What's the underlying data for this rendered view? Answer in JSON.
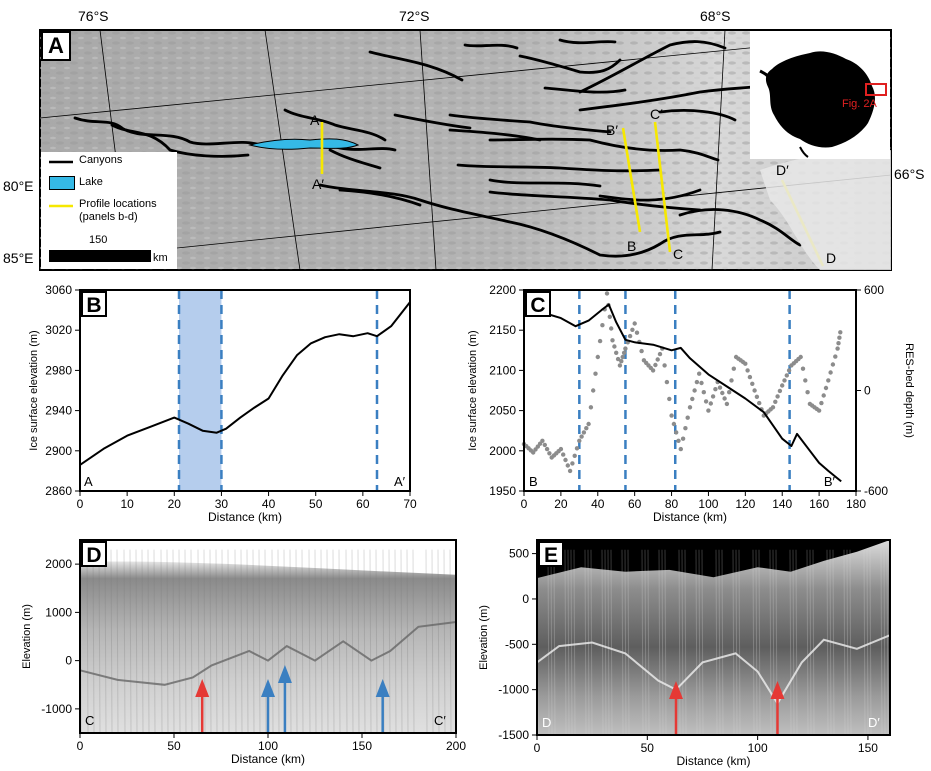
{
  "panel_a": {
    "letter": "A",
    "lat_labels": [
      "76°S",
      "72°S",
      "68°S",
      "66°S"
    ],
    "lon_labels": [
      "80°E",
      "85°E"
    ],
    "legend": {
      "canyons": "Canyons",
      "lake": "Lake",
      "profile": "Profile locations",
      "profile_sub": "(panels b-d)"
    },
    "scale_value": "150",
    "scale_unit": "km",
    "inset_label": "Fig. 2A",
    "profile_labels": [
      "A",
      "A′",
      "B′",
      "B",
      "C′",
      "C",
      "D′",
      "D"
    ]
  },
  "chart_data": [
    {
      "type": "line",
      "panel": "B",
      "xlabel": "Distance (km)",
      "ylabel": "Ice surface elevation (m)",
      "xlim": [
        0,
        70
      ],
      "ylim": [
        2860,
        3060
      ],
      "xticks": [
        0,
        10,
        20,
        30,
        40,
        50,
        60,
        70
      ],
      "yticks": [
        2860,
        2900,
        2940,
        2980,
        3020,
        3060
      ],
      "x": [
        0,
        5,
        10,
        15,
        20,
        23,
        26,
        29,
        31,
        34,
        37,
        40,
        43,
        46,
        49,
        52,
        55,
        58,
        61,
        63,
        66,
        70
      ],
      "y": [
        2886,
        2902,
        2915,
        2924,
        2933,
        2927,
        2920,
        2918,
        2922,
        2933,
        2943,
        2952,
        2975,
        2995,
        3007,
        3013,
        3016,
        3014,
        3017,
        3014,
        3024,
        3048
      ],
      "vlines": [
        21,
        30,
        63
      ],
      "shaded_range": [
        21,
        30
      ],
      "start_label": "A",
      "end_label": "A′"
    },
    {
      "type": "line",
      "panel": "C",
      "xlabel": "Distance (km)",
      "ylabel": "Ice surface elevation (m)",
      "y2label": "RES-bed depth (m)",
      "xlim": [
        0,
        180
      ],
      "ylim": [
        1950,
        2200
      ],
      "y2lim": [
        -600,
        600
      ],
      "xticks": [
        0,
        20,
        40,
        60,
        80,
        100,
        120,
        140,
        160,
        180
      ],
      "yticks": [
        1950,
        2000,
        2050,
        2100,
        2150,
        2200
      ],
      "y2ticks": [
        -600,
        0,
        600
      ],
      "series": [
        {
          "x": [
            0,
            10,
            20,
            28,
            35,
            42,
            46,
            50,
            55,
            60,
            70,
            80,
            85,
            90,
            100,
            110,
            120,
            130,
            140,
            145,
            148,
            155,
            160,
            165,
            172
          ],
          "y": [
            2180,
            2172,
            2165,
            2155,
            2162,
            2175,
            2182,
            2160,
            2138,
            2135,
            2132,
            2125,
            2128,
            2115,
            2095,
            2080,
            2065,
            2048,
            2015,
            2006,
            2021,
            2000,
            1985,
            1975,
            1962
          ]
        },
        {
          "x": [
            0,
            5,
            10,
            15,
            20,
            25,
            30,
            35,
            40,
            45,
            48,
            52,
            55,
            60,
            65,
            70,
            75,
            80,
            85,
            90,
            95,
            100,
            105,
            110,
            115,
            120,
            125,
            130,
            135,
            140,
            145,
            150,
            155,
            160,
            165,
            170,
            172
          ],
          "y": [
            -320,
            -370,
            -300,
            -400,
            -350,
            -480,
            -300,
            -200,
            200,
            580,
            300,
            150,
            250,
            400,
            180,
            120,
            250,
            -150,
            -350,
            -100,
            100,
            -120,
            50,
            -80,
            200,
            160,
            0,
            -150,
            -100,
            30,
            150,
            200,
            -80,
            -120,
            60,
            250,
            380
          ]
        }
      ],
      "vlines": [
        30,
        55,
        82,
        144
      ],
      "start_label": "B",
      "end_label": "B′"
    },
    {
      "type": "heatmap",
      "panel": "D",
      "xlabel": "Distance (km)",
      "ylabel": "Elevation (m)",
      "xlim": [
        0,
        200
      ],
      "ylim": [
        -1500,
        2500
      ],
      "xticks": [
        0,
        50,
        100,
        150,
        200
      ],
      "yticks": [
        -1000,
        0,
        1000,
        2000
      ],
      "arrows": [
        {
          "x": 65,
          "color": "#e53935",
          "length": "short"
        },
        {
          "x": 100,
          "color": "#3a7fc1",
          "length": "short"
        },
        {
          "x": 109,
          "color": "#3a7fc1",
          "length": "tall"
        },
        {
          "x": 161,
          "color": "#3a7fc1",
          "length": "short"
        }
      ],
      "start_label": "C",
      "end_label": "C′"
    },
    {
      "type": "heatmap",
      "panel": "E",
      "xlabel": "Distance (km)",
      "ylabel": "Elevation (m)",
      "xlim": [
        0,
        160
      ],
      "ylim": [
        -1500,
        650
      ],
      "xticks": [
        0,
        50,
        100,
        150
      ],
      "yticks": [
        -1500,
        -1000,
        -500,
        0,
        500
      ],
      "arrows": [
        {
          "x": 63,
          "color": "#e53935"
        },
        {
          "x": 109,
          "color": "#e53935"
        }
      ],
      "start_label": "D",
      "end_label": "D′"
    }
  ],
  "colors": {
    "lake": "#35b9e6",
    "profile": "#f6e800",
    "dash": "#3a7fc1",
    "shade": "#a8c4ea",
    "inset_box": "#e02020",
    "gray_series": "#8c8c8c"
  }
}
